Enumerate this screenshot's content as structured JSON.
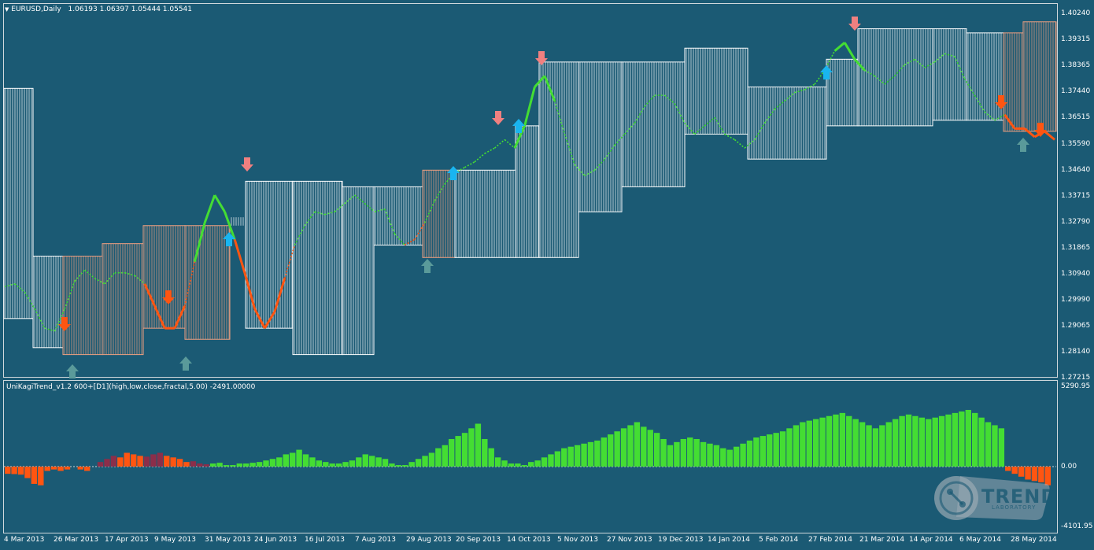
{
  "window": {
    "symbol_label": "EURUSD,Daily",
    "ohlc": "1.06193 1.06397 1.05444 1.05541",
    "indicator_label": "UniKagiTrend_v1.2 600+[D1](high,low,close,fractal,5.00) -2491.00000"
  },
  "price_axis": [
    "1.40240",
    "1.39315",
    "1.38365",
    "1.37440",
    "1.36515",
    "1.35590",
    "1.34640",
    "1.33715",
    "1.32790",
    "1.31865",
    "1.30940",
    "1.29990",
    "1.29065",
    "1.28140",
    "1.27215"
  ],
  "indicator_axis": {
    "top": "5290.95",
    "zero": "0.00",
    "bottom": "-4101.95"
  },
  "date_axis": [
    "4 Mar 2013",
    "26 Mar 2013",
    "17 Apr 2013",
    "9 May 2013",
    "31 May 2013",
    "24 Jun 2013",
    "16 Jul 2013",
    "7 Aug 2013",
    "29 Aug 2013",
    "20 Sep 2013",
    "14 Oct 2013",
    "5 Nov 2013",
    "27 Nov 2013",
    "19 Dec 2013",
    "14 Jan 2014",
    "5 Feb 2014",
    "27 Feb 2014",
    "21 Mar 2014",
    "14 Apr 2014",
    "6 May 2014",
    "28 May 2014"
  ],
  "logo": {
    "text": "TREND",
    "subtext": "LABORATORY"
  },
  "colors": {
    "background": "#1b5a74",
    "up_box": "#ffffff",
    "down_box": "#f0a080",
    "up_line": "#44dd33",
    "down_line": "#ff5511",
    "up_arrow": "#19b5f0",
    "down_arrow": "#f08080",
    "hist_up": "#44dd33",
    "hist_down": "#ff5511",
    "hist_dark": "#8b2e4a"
  },
  "chart_data": {
    "type": "line",
    "series": [
      {
        "values": [
          1.303,
          1.304,
          1.301,
          1.295,
          1.288,
          1.287,
          1.295,
          1.305,
          1.309,
          1.306,
          1.304,
          1.308,
          1.308,
          1.307,
          1.304,
          1.296,
          1.288,
          1.288,
          1.296,
          1.312,
          1.326,
          1.336,
          1.33,
          1.32,
          1.308,
          1.295,
          1.288,
          1.294,
          1.306,
          1.318,
          1.325,
          1.33,
          1.329,
          1.33,
          1.333,
          1.336,
          1.333,
          1.33,
          1.331,
          1.322,
          1.318,
          1.32,
          1.326,
          1.334,
          1.34,
          1.344,
          1.346,
          1.348,
          1.351,
          1.353,
          1.356,
          1.353,
          1.361,
          1.375,
          1.379,
          1.37,
          1.358,
          1.347,
          1.343,
          1.345,
          1.349,
          1.354,
          1.358,
          1.362,
          1.368,
          1.372,
          1.372,
          1.369,
          1.362,
          1.358,
          1.361,
          1.364,
          1.358,
          1.356,
          1.353,
          1.356,
          1.362,
          1.367,
          1.37,
          1.373,
          1.374,
          1.376,
          1.381,
          1.388,
          1.391,
          1.385,
          1.381,
          1.379,
          1.376,
          1.379,
          1.383,
          1.385,
          1.382,
          1.384,
          1.387,
          1.386,
          1.378,
          1.372,
          1.366,
          1.363,
          1.365,
          1.36,
          1.36,
          1.357,
          1.359,
          1.356
        ]
      }
    ],
    "ylim": [
      1.27215,
      1.4024
    ]
  },
  "indicator_data": [
    -500,
    -520,
    -560,
    -800,
    -1200,
    -1300,
    -300,
    -200,
    -300,
    -200,
    0,
    -200,
    -300,
    0,
    300,
    500,
    700,
    600,
    900,
    800,
    700,
    650,
    800,
    900,
    700,
    600,
    500,
    300,
    350,
    200,
    150,
    200,
    250,
    100,
    100,
    200,
    200,
    250,
    300,
    400,
    500,
    600,
    800,
    900,
    1100,
    800,
    600,
    400,
    300,
    200,
    200,
    300,
    400,
    600,
    800,
    700,
    600,
    500,
    200,
    100,
    100,
    300,
    500,
    700,
    900,
    1200,
    1400,
    1800,
    2000,
    2200,
    2500,
    2800,
    1800,
    1200,
    600,
    400,
    200,
    200,
    100,
    300,
    400,
    600,
    800,
    1000,
    1200,
    1300,
    1400,
    1500,
    1600,
    1700,
    1900,
    2100,
    2300,
    2500,
    2700,
    2900,
    2600,
    2400,
    2200,
    1800,
    1400,
    1600,
    1800,
    1900,
    1800,
    1600,
    1500,
    1400,
    1200,
    1100,
    1300,
    1500,
    1700,
    1900,
    2000,
    2100,
    2200,
    2300,
    2500,
    2700,
    2900,
    3000,
    3100,
    3200,
    3300,
    3400,
    3500,
    3300,
    3100,
    2900,
    2700,
    2500,
    2700,
    2900,
    3100,
    3300,
    3400,
    3300,
    3200,
    3100,
    3200,
    3300,
    3400,
    3500,
    3600,
    3700,
    3500,
    3200,
    2900,
    2700,
    2500,
    -300,
    -500,
    -700,
    -900,
    -1000,
    -1100,
    -1300
  ]
}
